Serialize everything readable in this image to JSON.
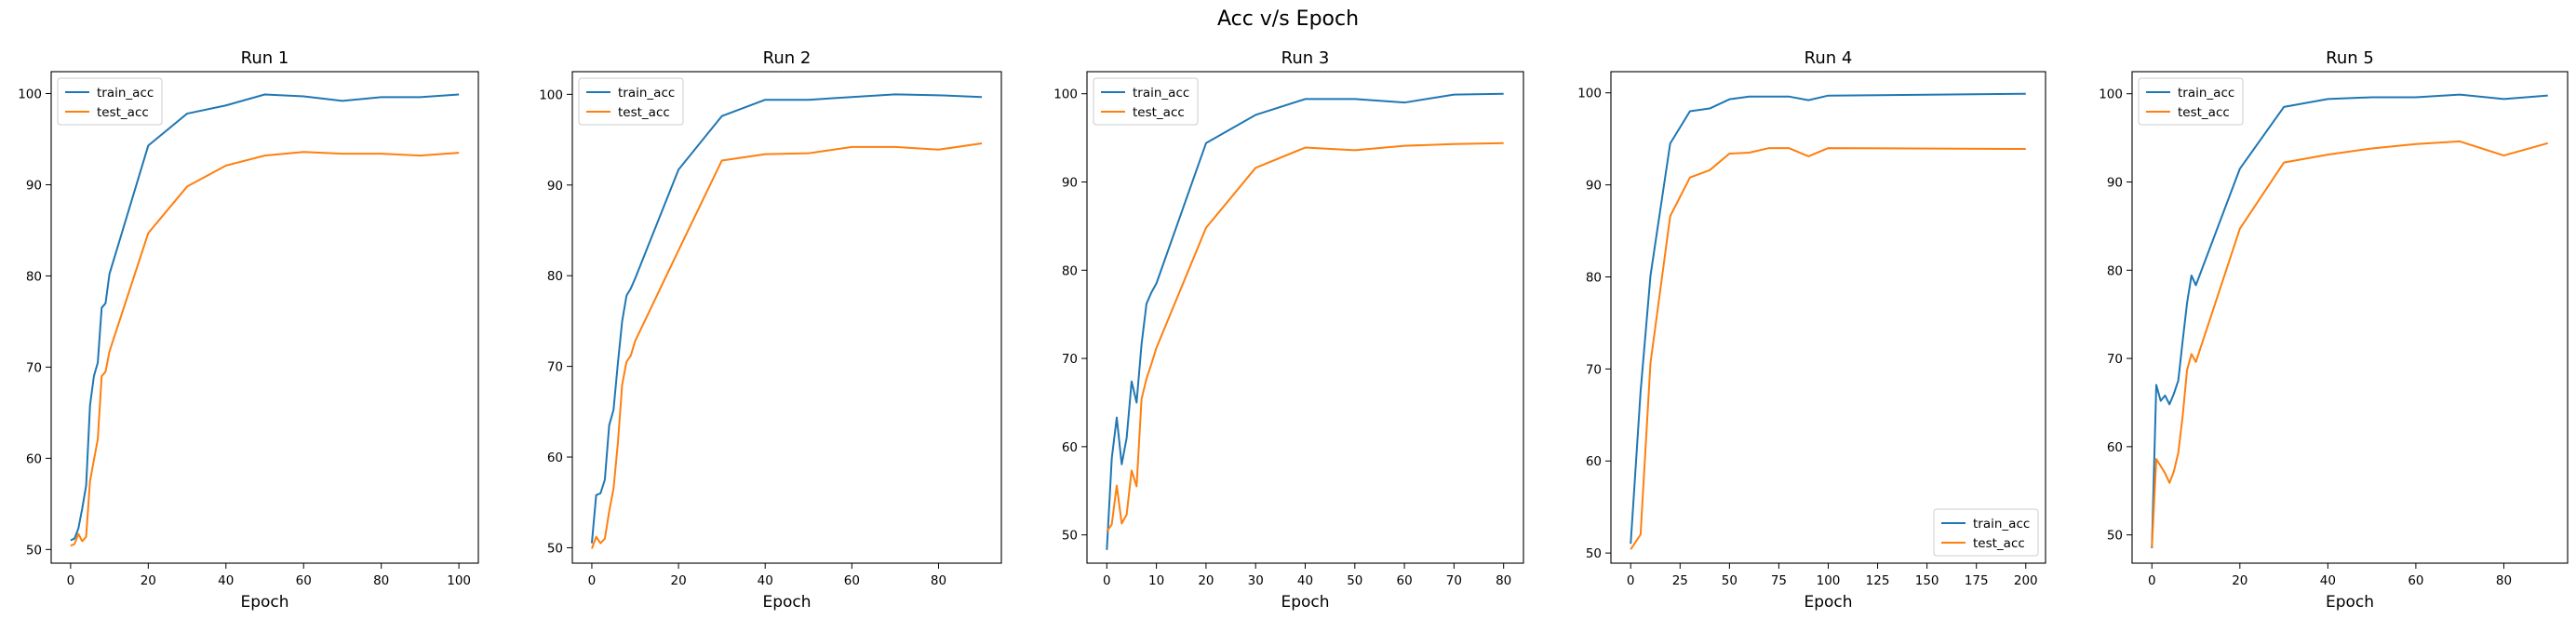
{
  "figure": {
    "suptitle": "Acc v/s Epoch"
  },
  "colors": {
    "train_acc": "#1f77b4",
    "test_acc": "#ff7f0e"
  },
  "chart_data": [
    {
      "type": "line",
      "title": "Run 1",
      "xlabel": "Epoch",
      "ylabel": "",
      "xlim": [
        -5,
        105
      ],
      "ylim": [
        48.5,
        102.4
      ],
      "xticks": [
        0,
        20,
        40,
        60,
        80,
        100
      ],
      "yticks": [
        50,
        60,
        70,
        80,
        90,
        100
      ],
      "legend": "top-left",
      "series": [
        {
          "name": "train_acc",
          "x": [
            0,
            1,
            2,
            3,
            4,
            5,
            6,
            7,
            8,
            9,
            10,
            20,
            30,
            40,
            50,
            60,
            70,
            80,
            90,
            100
          ],
          "y": [
            51.0,
            51.2,
            52.3,
            54.5,
            57.0,
            65.8,
            69.0,
            70.5,
            76.5,
            77.0,
            80.2,
            94.3,
            97.8,
            98.7,
            99.9,
            99.7,
            99.2,
            99.6,
            99.6,
            99.9
          ]
        },
        {
          "name": "test_acc",
          "x": [
            0,
            1,
            2,
            3,
            4,
            5,
            6,
            7,
            8,
            9,
            10,
            20,
            30,
            40,
            50,
            60,
            70,
            80,
            90,
            100
          ],
          "y": [
            50.4,
            50.6,
            51.7,
            50.9,
            51.4,
            57.5,
            59.8,
            62.1,
            69.0,
            69.5,
            71.7,
            84.7,
            89.8,
            92.1,
            93.2,
            93.6,
            93.4,
            93.4,
            93.2,
            93.5
          ]
        }
      ]
    },
    {
      "type": "line",
      "title": "Run 2",
      "xlabel": "Epoch",
      "ylabel": "",
      "xlim": [
        -4.5,
        94.5
      ],
      "ylim": [
        48.3,
        102.5
      ],
      "xticks": [
        0,
        20,
        40,
        60,
        80
      ],
      "yticks": [
        50,
        60,
        70,
        80,
        90,
        100
      ],
      "legend": "top-left",
      "series": [
        {
          "name": "train_acc",
          "x": [
            0,
            1,
            2,
            3,
            4,
            5,
            6,
            7,
            8,
            9,
            10,
            20,
            30,
            40,
            50,
            60,
            70,
            80,
            90
          ],
          "y": [
            50.5,
            55.8,
            56.0,
            57.5,
            63.5,
            65.2,
            70.3,
            75.0,
            77.8,
            78.6,
            79.7,
            91.7,
            97.6,
            99.4,
            99.4,
            99.7,
            100.0,
            99.9,
            99.7
          ]
        },
        {
          "name": "test_acc",
          "x": [
            0,
            1,
            2,
            3,
            4,
            5,
            6,
            7,
            8,
            9,
            10,
            20,
            30,
            40,
            50,
            60,
            70,
            80,
            90
          ],
          "y": [
            49.9,
            51.2,
            50.5,
            51.0,
            54.0,
            56.5,
            61.5,
            68.0,
            70.5,
            71.2,
            72.8,
            82.8,
            92.7,
            93.4,
            93.5,
            94.2,
            94.2,
            93.9,
            94.6
          ]
        }
      ]
    },
    {
      "type": "line",
      "title": "Run 3",
      "xlabel": "Epoch",
      "ylabel": "",
      "xlim": [
        -4,
        84
      ],
      "ylim": [
        46.8,
        102.5
      ],
      "xticks": [
        0,
        10,
        20,
        30,
        40,
        50,
        60,
        70,
        80
      ],
      "yticks": [
        50,
        60,
        70,
        80,
        90,
        100
      ],
      "legend": "top-left",
      "series": [
        {
          "name": "train_acc",
          "x": [
            0,
            1,
            2,
            3,
            4,
            5,
            6,
            7,
            8,
            9,
            10,
            20,
            30,
            40,
            50,
            60,
            70,
            80
          ],
          "y": [
            48.3,
            58.7,
            63.3,
            58.0,
            61.0,
            67.4,
            65.0,
            71.6,
            76.2,
            77.5,
            78.5,
            94.4,
            97.6,
            99.4,
            99.4,
            99.0,
            99.9,
            100.0
          ]
        },
        {
          "name": "test_acc",
          "x": [
            0,
            1,
            2,
            3,
            4,
            5,
            6,
            7,
            8,
            9,
            10,
            20,
            30,
            40,
            50,
            60,
            70,
            80
          ],
          "y": [
            50.4,
            51.2,
            55.6,
            51.3,
            52.3,
            57.3,
            55.5,
            65.4,
            67.7,
            69.4,
            71.2,
            84.8,
            91.6,
            93.9,
            93.6,
            94.1,
            94.3,
            94.4
          ]
        }
      ]
    },
    {
      "type": "line",
      "title": "Run 4",
      "xlabel": "Epoch",
      "ylabel": "",
      "xlim": [
        -10,
        210
      ],
      "ylim": [
        48.9,
        102.3
      ],
      "xticks": [
        0,
        25,
        50,
        75,
        100,
        125,
        150,
        175,
        200
      ],
      "yticks": [
        50,
        60,
        70,
        80,
        90,
        100
      ],
      "legend": "bottom-right",
      "series": [
        {
          "name": "train_acc",
          "x": [
            0,
            5,
            10,
            20,
            30,
            40,
            50,
            60,
            70,
            80,
            90,
            100,
            200
          ],
          "y": [
            51.0,
            67.5,
            80.1,
            94.5,
            98.0,
            98.3,
            99.3,
            99.6,
            99.6,
            99.6,
            99.2,
            99.7,
            99.9
          ]
        },
        {
          "name": "test_acc",
          "x": [
            0,
            5,
            10,
            20,
            30,
            40,
            50,
            60,
            70,
            80,
            90,
            100,
            200
          ],
          "y": [
            50.4,
            52.0,
            70.6,
            86.6,
            90.8,
            91.6,
            93.4,
            93.5,
            94.0,
            94.0,
            93.1,
            94.0,
            93.9
          ]
        }
      ]
    },
    {
      "type": "line",
      "title": "Run 5",
      "xlabel": "Epoch",
      "ylabel": "",
      "xlim": [
        -4.5,
        94.5
      ],
      "ylim": [
        46.8,
        102.5
      ],
      "xticks": [
        0,
        20,
        40,
        60,
        80
      ],
      "yticks": [
        50,
        60,
        70,
        80,
        90,
        100
      ],
      "legend": "top-left",
      "series": [
        {
          "name": "train_acc",
          "x": [
            0,
            1,
            2,
            3,
            4,
            5,
            6,
            7,
            8,
            9,
            10,
            20,
            30,
            40,
            50,
            60,
            70,
            80,
            90
          ],
          "y": [
            48.5,
            67.0,
            65.2,
            65.8,
            64.8,
            66.0,
            67.5,
            72.0,
            76.3,
            79.4,
            78.3,
            91.5,
            98.5,
            99.4,
            99.6,
            99.6,
            99.9,
            99.4,
            99.8
          ]
        },
        {
          "name": "test_acc",
          "x": [
            0,
            1,
            2,
            3,
            4,
            5,
            6,
            7,
            8,
            9,
            10,
            20,
            30,
            40,
            50,
            60,
            70,
            80,
            90
          ],
          "y": [
            48.6,
            58.6,
            57.8,
            57.0,
            55.9,
            57.2,
            59.3,
            63.5,
            68.7,
            70.5,
            69.6,
            84.7,
            92.2,
            93.1,
            93.8,
            94.3,
            94.6,
            93.0,
            94.4
          ]
        }
      ]
    }
  ]
}
